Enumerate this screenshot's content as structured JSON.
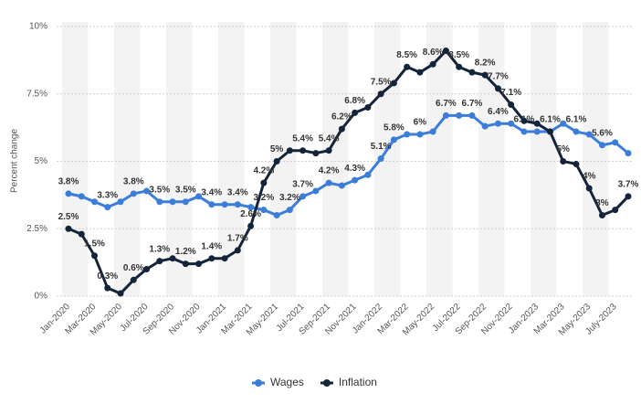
{
  "chart_data": {
    "type": "line",
    "y_label": "Percent change",
    "categories": [
      "Jan-2020",
      null,
      "Mar-2020",
      null,
      "May-2020",
      null,
      "Jul-2020",
      null,
      "Sep-2020",
      null,
      "Nov-2020",
      null,
      "Jan-2021",
      null,
      "Mar-2021",
      null,
      "May-2021",
      null,
      "Jul-2021",
      null,
      "Sep-2021",
      null,
      "Nov-2021",
      null,
      "Jan-2022",
      null,
      "Mar-2022",
      null,
      "May-2022",
      null,
      "Jul-2022",
      null,
      "Sep-2022",
      null,
      "Nov-2022",
      null,
      "Jan-2023",
      null,
      "Mar-2023",
      null,
      "May-2023",
      null,
      "July-2023",
      null
    ],
    "series": [
      {
        "name": "Wages",
        "color": "#3b7dd8",
        "values": [
          3.8,
          3.7,
          3.5,
          3.3,
          3.5,
          3.8,
          3.9,
          3.5,
          3.5,
          3.5,
          3.7,
          3.4,
          3.4,
          3.4,
          3.3,
          3.2,
          3.0,
          3.2,
          3.7,
          3.9,
          4.2,
          4.1,
          4.3,
          4.5,
          5.1,
          5.8,
          6.0,
          6.0,
          6.1,
          6.7,
          6.7,
          6.7,
          6.3,
          6.4,
          6.4,
          6.1,
          6.1,
          6.1,
          6.4,
          6.1,
          6.0,
          5.6,
          5.7,
          5.3
        ],
        "value_labels": [
          "3.8%",
          null,
          null,
          "3.3%",
          null,
          "3.8%",
          null,
          "3.5%",
          null,
          "3.5%",
          null,
          "3.4%",
          null,
          "3.4%",
          null,
          "3.2%",
          null,
          "3.2%",
          "3.7%",
          null,
          "4.2%",
          null,
          "4.3%",
          null,
          "5.1%",
          "5.8%",
          null,
          "6%",
          null,
          "6.7%",
          null,
          "6.7%",
          null,
          "6.4%",
          null,
          "6.1%",
          null,
          "6.1%",
          null,
          "6.1%",
          null,
          "5.6%",
          null,
          null
        ]
      },
      {
        "name": "Inflation",
        "color": "#14243a",
        "values": [
          2.5,
          2.3,
          1.5,
          0.3,
          0.1,
          0.6,
          1.0,
          1.3,
          1.4,
          1.2,
          1.2,
          1.4,
          1.4,
          1.7,
          2.6,
          4.2,
          5.0,
          5.4,
          5.4,
          5.3,
          5.4,
          6.2,
          6.8,
          7.0,
          7.5,
          7.9,
          8.5,
          8.3,
          8.6,
          9.1,
          8.5,
          8.3,
          8.2,
          7.7,
          7.1,
          6.5,
          6.4,
          6.1,
          5.0,
          4.9,
          4.0,
          3.0,
          3.2,
          3.7
        ],
        "value_labels": [
          "2.5%",
          null,
          "1.5%",
          "0.3%",
          null,
          "0.6%",
          null,
          "1.3%",
          null,
          "1.2%",
          null,
          "1.4%",
          null,
          "1.7%",
          "2.6%",
          "4.2%",
          "5%",
          null,
          "5.4%",
          null,
          "5.4%",
          "6.2%",
          "6.8%",
          null,
          "7.5%",
          null,
          "8.5%",
          null,
          "8.6%",
          null,
          "8.5%",
          null,
          "8.2%",
          "7.7%",
          "7.1%",
          null,
          null,
          null,
          "5%",
          null,
          "4%",
          "3%",
          null,
          "3.7%"
        ]
      }
    ],
    "ylim": [
      0,
      10
    ],
    "yticks": [
      {
        "value": 0,
        "label": "0%"
      },
      {
        "value": 2.5,
        "label": "2.5%"
      },
      {
        "value": 5,
        "label": "5%"
      },
      {
        "value": 7.5,
        "label": "7.5%"
      },
      {
        "value": 10,
        "label": "10%"
      }
    ],
    "grid": true,
    "legend": "bottom"
  }
}
